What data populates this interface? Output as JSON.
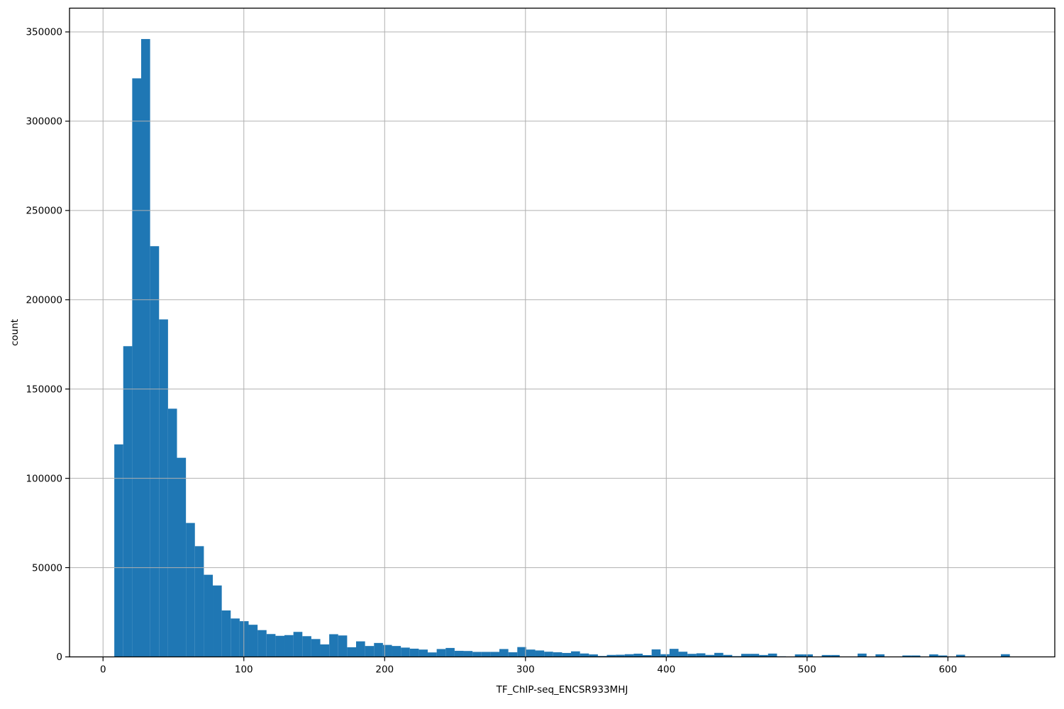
{
  "figure": {
    "background_color": "#ffffff"
  },
  "chart_data": {
    "type": "bar",
    "subtype": "histogram",
    "title": "",
    "xlabel": "TF_ChIP-seq_ENCSR933MHJ",
    "ylabel": "count",
    "bar_color": "#1f77b4",
    "grid_color": "#b0b0b0",
    "spine_color": "#000000",
    "text_color": "#000000",
    "grid": true,
    "legend_position": "none",
    "n_bins": 100,
    "bin_start": 8.0,
    "bin_width": 6.36,
    "data_min": 8.0,
    "data_max": 644.0,
    "xlim": [
      -23.8,
      675.9
    ],
    "ylim": [
      0,
      363300
    ],
    "xticks": [
      0,
      100,
      200,
      300,
      400,
      500,
      600
    ],
    "xticklabels": [
      "0",
      "100",
      "200",
      "300",
      "400",
      "500",
      "600"
    ],
    "yticks": [
      0,
      50000,
      100000,
      150000,
      200000,
      250000,
      300000,
      350000
    ],
    "yticklabels": [
      "0",
      "50000",
      "100000",
      "150000",
      "200000",
      "250000",
      "300000",
      "350000"
    ],
    "counts": [
      119000,
      174000,
      324000,
      346000,
      230000,
      189000,
      139000,
      111500,
      75000,
      62000,
      46000,
      40000,
      26000,
      21500,
      20000,
      18000,
      15000,
      12800,
      11800,
      12200,
      14000,
      11600,
      10000,
      7000,
      12700,
      12000,
      5400,
      8700,
      6100,
      7800,
      6700,
      6100,
      5200,
      4600,
      4100,
      2500,
      4400,
      5000,
      3400,
      3300,
      2800,
      2800,
      2800,
      4400,
      2600,
      5500,
      4100,
      3600,
      2900,
      2600,
      2200,
      3100,
      1900,
      1400,
      500,
      1100,
      1200,
      1500,
      1800,
      1000,
      4200,
      1500,
      4500,
      2900,
      1700,
      2000,
      1100,
      2250,
      1100,
      400,
      1700,
      1700,
      1050,
      1850,
      300,
      0,
      1400,
      1400,
      0,
      1050,
      1050,
      0,
      0,
      1850,
      0,
      1450,
      0,
      0,
      800,
      800,
      0,
      1400,
      800,
      0,
      1200,
      0,
      0,
      0,
      0,
      1500
    ]
  }
}
